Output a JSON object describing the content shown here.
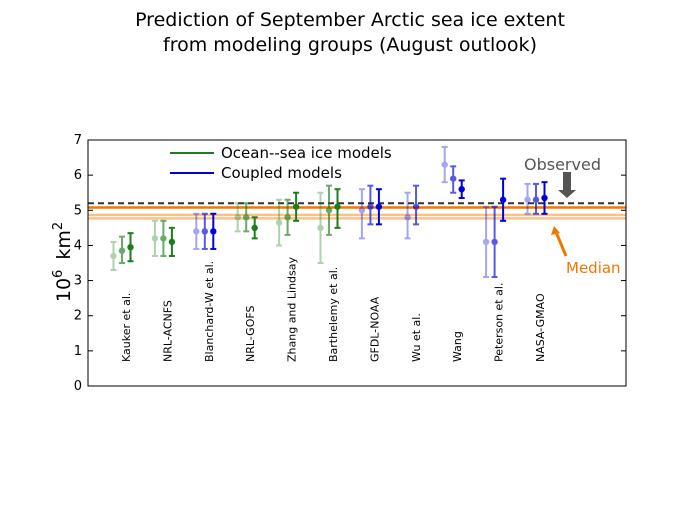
{
  "chart_data": {
    "type": "scatter",
    "title_lines": [
      "Prediction of September Arctic sea ice extent",
      "from modeling groups (August outlook)"
    ],
    "ylabel_base": "10",
    "ylabel_exp": "6",
    "ylabel_unit": "km",
    "ylabel_unit_exp": "2",
    "ylim": [
      0,
      7
    ],
    "yticks": [
      "0",
      "1",
      "2",
      "3",
      "4",
      "5",
      "6",
      "7"
    ],
    "categories": [
      "Kauker et al.",
      "NRL-ACNFS",
      "Blanchard-W et al.",
      "NRL-GOFS",
      "Zhang and Lindsay",
      "Barthelemy et al.",
      "GFDL-NOAA",
      "Wu et al.",
      "Wang",
      "Peterson et al.",
      "NASA-GMAO"
    ],
    "legend": [
      {
        "label": "Ocean--sea ice models",
        "color": "#1a7f1a"
      },
      {
        "label": "Coupled models",
        "color": "#0000dd"
      }
    ],
    "observed": {
      "value": 5.2,
      "label": "Observed",
      "color": "#555555"
    },
    "median": {
      "value": 5.08,
      "band": [
        4.77,
        4.87
      ],
      "label": "Median",
      "color": "#f07800"
    },
    "groups": [
      {
        "type": "ocean",
        "points": [
          {
            "y": 3.7,
            "lo": 3.3,
            "hi": 4.1,
            "alpha": 0.35
          },
          {
            "y": 3.85,
            "lo": 3.5,
            "hi": 4.25,
            "alpha": 0.65
          },
          {
            "y": 3.95,
            "lo": 3.55,
            "hi": 4.35,
            "alpha": 1
          }
        ]
      },
      {
        "type": "ocean",
        "points": [
          {
            "y": 4.2,
            "lo": 3.7,
            "hi": 4.7,
            "alpha": 0.35
          },
          {
            "y": 4.2,
            "lo": 3.7,
            "hi": 4.7,
            "alpha": 0.65
          },
          {
            "y": 4.1,
            "lo": 3.7,
            "hi": 4.5,
            "alpha": 1
          }
        ]
      },
      {
        "type": "coupled",
        "points": [
          {
            "y": 4.4,
            "lo": 3.9,
            "hi": 4.9,
            "alpha": 0.35
          },
          {
            "y": 4.4,
            "lo": 3.9,
            "hi": 4.9,
            "alpha": 0.65
          },
          {
            "y": 4.4,
            "lo": 3.9,
            "hi": 4.9,
            "alpha": 1
          }
        ]
      },
      {
        "type": "ocean",
        "points": [
          {
            "y": 4.8,
            "lo": 4.4,
            "hi": 5.2,
            "alpha": 0.35
          },
          {
            "y": 4.8,
            "lo": 4.4,
            "hi": 5.2,
            "alpha": 0.65
          },
          {
            "y": 4.5,
            "lo": 4.2,
            "hi": 4.8,
            "alpha": 1
          }
        ]
      },
      {
        "type": "ocean",
        "points": [
          {
            "y": 4.65,
            "lo": 4.0,
            "hi": 5.3,
            "alpha": 0.35
          },
          {
            "y": 4.8,
            "lo": 4.3,
            "hi": 5.3,
            "alpha": 0.65
          },
          {
            "y": 5.1,
            "lo": 4.7,
            "hi": 5.5,
            "alpha": 1
          }
        ]
      },
      {
        "type": "ocean",
        "points": [
          {
            "y": 4.5,
            "lo": 3.5,
            "hi": 5.5,
            "alpha": 0.35
          },
          {
            "y": 5.0,
            "lo": 4.3,
            "hi": 5.7,
            "alpha": 0.65
          },
          {
            "y": 5.1,
            "lo": 4.5,
            "hi": 5.6,
            "alpha": 1
          }
        ]
      },
      {
        "type": "coupled",
        "points": [
          {
            "y": 5.0,
            "lo": 4.2,
            "hi": 5.6,
            "alpha": 0.35
          },
          {
            "y": 5.1,
            "lo": 4.6,
            "hi": 5.7,
            "alpha": 0.65
          },
          {
            "y": 5.1,
            "lo": 4.6,
            "hi": 5.6,
            "alpha": 1
          }
        ]
      },
      {
        "type": "coupled",
        "points": [
          {
            "y": 4.8,
            "lo": 4.2,
            "hi": 5.5,
            "alpha": 0.35
          },
          {
            "y": 5.1,
            "lo": 4.6,
            "hi": 5.7,
            "alpha": 0.65
          }
        ]
      },
      {
        "type": "coupled",
        "points": [
          {
            "y": 6.3,
            "lo": 5.8,
            "hi": 6.8,
            "alpha": 0.35
          },
          {
            "y": 5.9,
            "lo": 5.5,
            "hi": 6.25,
            "alpha": 0.65
          },
          {
            "y": 5.6,
            "lo": 5.35,
            "hi": 5.85,
            "alpha": 1
          }
        ]
      },
      {
        "type": "coupled",
        "points": [
          {
            "y": 4.1,
            "lo": 3.1,
            "hi": 5.1,
            "alpha": 0.35
          },
          {
            "y": 4.1,
            "lo": 3.1,
            "hi": 5.1,
            "alpha": 0.65
          },
          {
            "y": 5.3,
            "lo": 4.7,
            "hi": 5.9,
            "alpha": 1
          }
        ]
      },
      {
        "type": "coupled",
        "points": [
          {
            "y": 5.3,
            "lo": 4.9,
            "hi": 5.75,
            "alpha": 0.35
          },
          {
            "y": 5.3,
            "lo": 4.9,
            "hi": 5.75,
            "alpha": 0.65
          },
          {
            "y": 5.35,
            "lo": 4.9,
            "hi": 5.8,
            "alpha": 1
          }
        ]
      }
    ]
  }
}
